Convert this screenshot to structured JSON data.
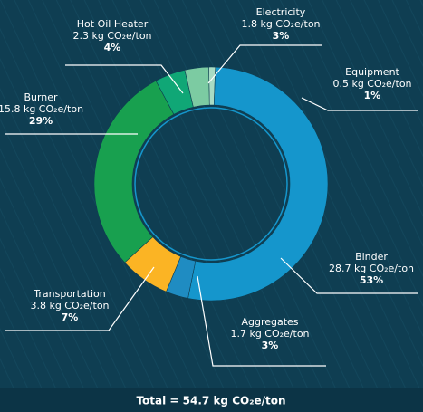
{
  "chart_data": {
    "type": "donut",
    "categories": [
      "Equipment",
      "Binder",
      "Aggregates",
      "Transportation",
      "Burner",
      "Hot Oil Heater",
      "Electricity"
    ],
    "values": [
      0.5,
      28.7,
      1.7,
      3.8,
      15.8,
      2.3,
      1.8
    ],
    "value_labels": [
      "0.5 kg CO₂e/ton",
      "28.7 kg CO₂e/ton",
      "1.7 kg CO₂e/ton",
      "3.8 kg CO₂e/ton",
      "15.8 kg CO₂e/ton",
      "2.3 kg CO₂e/ton",
      "1.8 kg CO₂e/ton"
    ],
    "shares": [
      1,
      53,
      3,
      7,
      29,
      4,
      3
    ],
    "share_labels": [
      "1%",
      "53%",
      "3%",
      "7%",
      "29%",
      "4%",
      "3%"
    ],
    "colors": [
      "#a9dcc4",
      "#1596cc",
      "#1f8cc2",
      "#fbb424",
      "#18a04f",
      "#10a776",
      "#7ccba2"
    ],
    "total": "Total = 54.7 kg CO₂e/ton"
  }
}
